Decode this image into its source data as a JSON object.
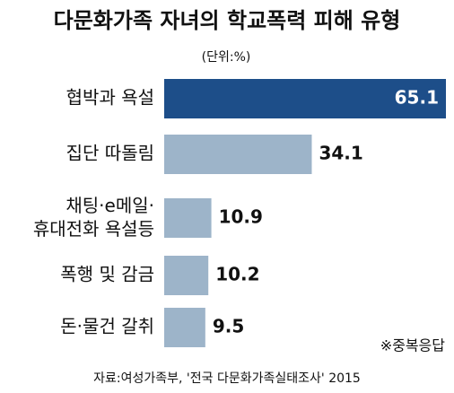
{
  "chart_data": {
    "type": "bar",
    "orientation": "horizontal",
    "title": "다문화가족 자녀의 학교폭력 피해 유형",
    "unit": "(단위:%)",
    "categories": [
      "협박과 욕설",
      "집단 따돌림",
      "채팅·e메일·\n휴대전화 욕설등",
      "폭행 및 감금",
      "돈·물건 갈취"
    ],
    "values": [
      65.1,
      34.1,
      10.9,
      10.2,
      9.5
    ],
    "colors": [
      "#1d4e89",
      "#9db4c9",
      "#9db4c9",
      "#9db4c9",
      "#9db4c9"
    ],
    "note": "※중복응답",
    "source": "자료:여성가족부, '전국 다문화가족실태조사' 2015"
  }
}
